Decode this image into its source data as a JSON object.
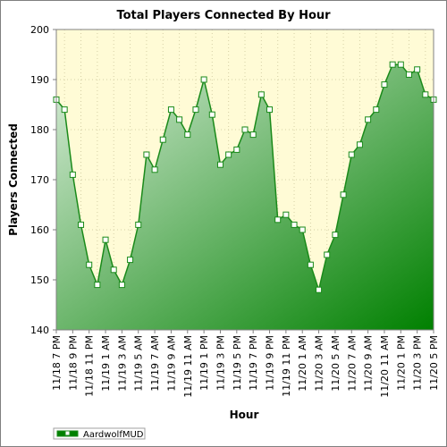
{
  "chart_data": {
    "type": "area",
    "title": "Total Players Connected By Hour",
    "xlabel": "Hour",
    "ylabel": "Players Connected",
    "ylim": [
      140,
      200
    ],
    "yticks": [
      140,
      150,
      160,
      170,
      180,
      190,
      200
    ],
    "grid": true,
    "legend_position": "bottom-left",
    "colors": {
      "plot_background": "#fffbd6",
      "line": "#1a8a1a",
      "fill_light": "#d8ecd8",
      "fill_dark": "#008000",
      "marker_fill": "#ffffff"
    },
    "x_tick_labels": [
      "11/18 7 PM",
      "11/18 9 PM",
      "11/18 11 PM",
      "11/19 1 AM",
      "11/19 3 AM",
      "11/19 5 AM",
      "11/19 7 AM",
      "11/19 9 AM",
      "11/19 11 AM",
      "11/19 1 PM",
      "11/19 3 PM",
      "11/19 5 PM",
      "11/19 7 PM",
      "11/19 9 PM",
      "11/19 11 PM",
      "11/20 1 AM",
      "11/20 3 AM",
      "11/20 5 AM",
      "11/20 7 AM",
      "11/20 9 AM",
      "11/20 11 AM",
      "11/20 1 PM",
      "11/20 3 PM",
      "11/20 5 PM"
    ],
    "series": [
      {
        "name": "AardwolfMUD",
        "values": [
          186,
          184,
          171,
          161,
          153,
          149,
          158,
          152,
          149,
          154,
          161,
          175,
          172,
          178,
          184,
          182,
          179,
          184,
          190,
          183,
          173,
          175,
          176,
          180,
          179,
          187,
          184,
          162,
          163,
          161,
          160,
          153,
          148,
          155,
          159,
          167,
          175,
          177,
          182,
          184,
          189,
          193,
          193,
          191,
          192,
          187,
          186
        ]
      }
    ]
  }
}
